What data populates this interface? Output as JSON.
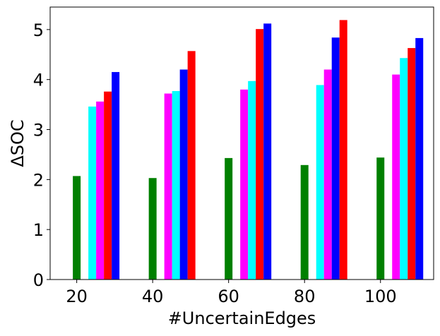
{
  "chart_data": {
    "type": "bar",
    "title": "",
    "xlabel": "#UncertainEdges",
    "ylabel": "ΔSOC",
    "ylim": [
      0,
      5.45
    ],
    "yticks": [
      0,
      1,
      2,
      3,
      4,
      5
    ],
    "categories": [
      "20",
      "40",
      "60",
      "80",
      "100"
    ],
    "x_values": [
      20,
      40,
      60,
      80,
      100
    ],
    "xlim": [
      13,
      114
    ],
    "grid": false,
    "legend": "none",
    "bar_slots": [
      [
        {
          "color": "#008000",
          "value": 2.07,
          "offset": 0
        },
        {
          "color": "#00ffff",
          "value": 3.46,
          "offset": 2
        },
        {
          "color": "#ff00ff",
          "value": 3.56,
          "offset": 3
        },
        {
          "color": "#ff0000",
          "value": 3.76,
          "offset": 4
        },
        {
          "color": "#0000ff",
          "value": 4.15,
          "offset": 5
        }
      ],
      [
        {
          "color": "#008000",
          "value": 2.03,
          "offset": 0
        },
        {
          "color": "#ff00ff",
          "value": 3.72,
          "offset": 2
        },
        {
          "color": "#00ffff",
          "value": 3.77,
          "offset": 3
        },
        {
          "color": "#0000ff",
          "value": 4.2,
          "offset": 4
        },
        {
          "color": "#ff0000",
          "value": 4.57,
          "offset": 5
        }
      ],
      [
        {
          "color": "#008000",
          "value": 2.43,
          "offset": 0
        },
        {
          "color": "#ff00ff",
          "value": 3.8,
          "offset": 2
        },
        {
          "color": "#00ffff",
          "value": 3.97,
          "offset": 3
        },
        {
          "color": "#ff0000",
          "value": 5.01,
          "offset": 4
        },
        {
          "color": "#0000ff",
          "value": 5.12,
          "offset": 5
        }
      ],
      [
        {
          "color": "#008000",
          "value": 2.29,
          "offset": 0
        },
        {
          "color": "#00ffff",
          "value": 3.89,
          "offset": 2
        },
        {
          "color": "#ff00ff",
          "value": 4.2,
          "offset": 3
        },
        {
          "color": "#0000ff",
          "value": 4.84,
          "offset": 4
        },
        {
          "color": "#ff0000",
          "value": 5.19,
          "offset": 5
        }
      ],
      [
        {
          "color": "#008000",
          "value": 2.44,
          "offset": 0
        },
        {
          "color": "#ff00ff",
          "value": 4.1,
          "offset": 2
        },
        {
          "color": "#00ffff",
          "value": 4.43,
          "offset": 3
        },
        {
          "color": "#ff0000",
          "value": 4.63,
          "offset": 4
        },
        {
          "color": "#0000ff",
          "value": 4.83,
          "offset": 5
        }
      ]
    ]
  }
}
